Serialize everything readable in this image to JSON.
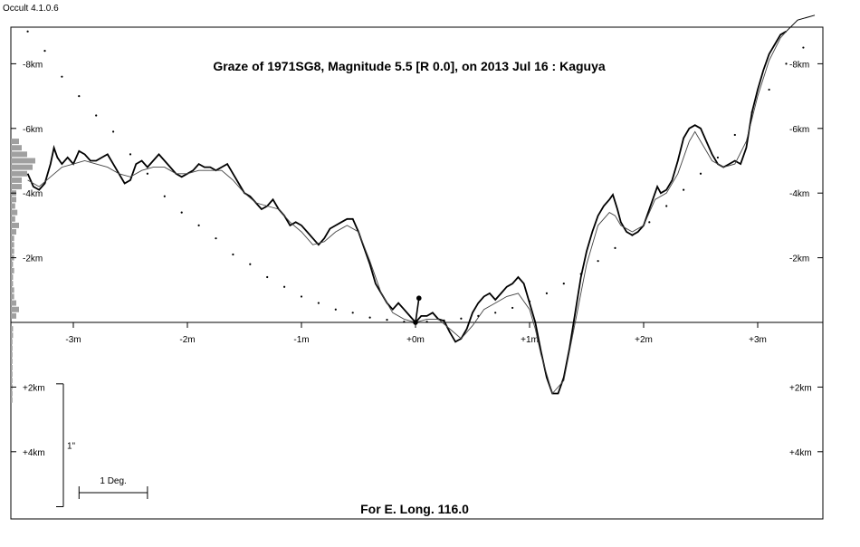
{
  "app": {
    "version": "Occult 4.1.0.6"
  },
  "chart_data": {
    "type": "line",
    "title": "Graze of  1971SG8,  Magnitude 5.5 [R 0.0],  on 2013 Jul 16  :  Kaguya",
    "footer": "For E. Long. 116.0",
    "x_axis": {
      "unit": "m",
      "range": [
        -3.4,
        3.55
      ],
      "ticks": [
        -3,
        -2,
        -1,
        0,
        1,
        2,
        3
      ],
      "tick_labels": [
        "-3m",
        "-2m",
        "-1m",
        "+0m",
        "+1m",
        "+2m",
        "+3m"
      ]
    },
    "y_axis": {
      "unit": "km",
      "range": [
        -9,
        6
      ],
      "ticks": [
        -8,
        -6,
        -4,
        -2,
        2,
        4
      ],
      "tick_labels": [
        "-8km",
        "-6km",
        "-4km",
        "-2km",
        "+2km",
        "+4km"
      ],
      "note": "negative values plotted upward"
    },
    "scale_bars": {
      "vertical_label": "1\"",
      "vertical_km": [
        1.9,
        5.7
      ],
      "horizontal_label": "1 Deg.",
      "horizontal_m": [
        -2.95,
        -2.35
      ]
    },
    "star_marker": {
      "x": 0.0,
      "y": 0.0,
      "x2": 0.03,
      "y2": -0.75
    },
    "series": [
      {
        "role": "profile-detailed",
        "points": [
          [
            -3.4,
            -4.6
          ],
          [
            -3.35,
            -4.2
          ],
          [
            -3.3,
            -4.1
          ],
          [
            -3.25,
            -4.3
          ],
          [
            -3.2,
            -4.9
          ],
          [
            -3.17,
            -5.4
          ],
          [
            -3.14,
            -5.1
          ],
          [
            -3.1,
            -4.9
          ],
          [
            -3.05,
            -5.1
          ],
          [
            -3.0,
            -4.9
          ],
          [
            -2.95,
            -5.3
          ],
          [
            -2.9,
            -5.2
          ],
          [
            -2.85,
            -5.0
          ],
          [
            -2.8,
            -5.0
          ],
          [
            -2.75,
            -5.1
          ],
          [
            -2.7,
            -5.2
          ],
          [
            -2.65,
            -4.9
          ],
          [
            -2.6,
            -4.6
          ],
          [
            -2.55,
            -4.3
          ],
          [
            -2.5,
            -4.4
          ],
          [
            -2.45,
            -4.9
          ],
          [
            -2.4,
            -5.0
          ],
          [
            -2.35,
            -4.8
          ],
          [
            -2.3,
            -5.0
          ],
          [
            -2.25,
            -5.2
          ],
          [
            -2.2,
            -5.0
          ],
          [
            -2.15,
            -4.8
          ],
          [
            -2.1,
            -4.6
          ],
          [
            -2.05,
            -4.5
          ],
          [
            -2.0,
            -4.6
          ],
          [
            -1.95,
            -4.7
          ],
          [
            -1.9,
            -4.9
          ],
          [
            -1.85,
            -4.8
          ],
          [
            -1.8,
            -4.8
          ],
          [
            -1.75,
            -4.7
          ],
          [
            -1.7,
            -4.8
          ],
          [
            -1.65,
            -4.9
          ],
          [
            -1.6,
            -4.6
          ],
          [
            -1.55,
            -4.3
          ],
          [
            -1.5,
            -4.0
          ],
          [
            -1.45,
            -3.9
          ],
          [
            -1.4,
            -3.7
          ],
          [
            -1.35,
            -3.5
          ],
          [
            -1.3,
            -3.6
          ],
          [
            -1.25,
            -3.8
          ],
          [
            -1.2,
            -3.5
          ],
          [
            -1.15,
            -3.3
          ],
          [
            -1.1,
            -3.0
          ],
          [
            -1.05,
            -3.1
          ],
          [
            -1.0,
            -3.0
          ],
          [
            -0.95,
            -2.8
          ],
          [
            -0.9,
            -2.6
          ],
          [
            -0.85,
            -2.4
          ],
          [
            -0.8,
            -2.6
          ],
          [
            -0.75,
            -2.9
          ],
          [
            -0.7,
            -3.0
          ],
          [
            -0.65,
            -3.1
          ],
          [
            -0.6,
            -3.2
          ],
          [
            -0.55,
            -3.2
          ],
          [
            -0.5,
            -2.8
          ],
          [
            -0.45,
            -2.3
          ],
          [
            -0.4,
            -1.8
          ],
          [
            -0.35,
            -1.2
          ],
          [
            -0.3,
            -0.9
          ],
          [
            -0.25,
            -0.6
          ],
          [
            -0.2,
            -0.4
          ],
          [
            -0.15,
            -0.6
          ],
          [
            -0.1,
            -0.4
          ],
          [
            -0.05,
            -0.2
          ],
          [
            0.0,
            0.0
          ],
          [
            0.05,
            -0.2
          ],
          [
            0.1,
            -0.2
          ],
          [
            0.15,
            -0.3
          ],
          [
            0.2,
            -0.1
          ],
          [
            0.25,
            -0.05
          ],
          [
            0.3,
            0.3
          ],
          [
            0.35,
            0.6
          ],
          [
            0.4,
            0.5
          ],
          [
            0.45,
            0.2
          ],
          [
            0.5,
            -0.3
          ],
          [
            0.55,
            -0.6
          ],
          [
            0.6,
            -0.8
          ],
          [
            0.65,
            -0.9
          ],
          [
            0.7,
            -0.7
          ],
          [
            0.75,
            -0.9
          ],
          [
            0.8,
            -1.1
          ],
          [
            0.85,
            -1.2
          ],
          [
            0.9,
            -1.4
          ],
          [
            0.95,
            -1.2
          ],
          [
            1.0,
            -0.6
          ],
          [
            1.05,
            0.0
          ],
          [
            1.1,
            0.9
          ],
          [
            1.15,
            1.7
          ],
          [
            1.2,
            2.2
          ],
          [
            1.25,
            2.2
          ],
          [
            1.3,
            1.7
          ],
          [
            1.35,
            0.8
          ],
          [
            1.4,
            -0.3
          ],
          [
            1.45,
            -1.4
          ],
          [
            1.5,
            -2.2
          ],
          [
            1.55,
            -2.8
          ],
          [
            1.6,
            -3.3
          ],
          [
            1.65,
            -3.6
          ],
          [
            1.7,
            -3.8
          ],
          [
            1.73,
            -3.95
          ],
          [
            1.77,
            -3.5
          ],
          [
            1.8,
            -3.1
          ],
          [
            1.85,
            -2.8
          ],
          [
            1.9,
            -2.7
          ],
          [
            1.95,
            -2.8
          ],
          [
            2.0,
            -3.0
          ],
          [
            2.05,
            -3.5
          ],
          [
            2.1,
            -4.0
          ],
          [
            2.12,
            -4.2
          ],
          [
            2.15,
            -4.0
          ],
          [
            2.2,
            -4.1
          ],
          [
            2.25,
            -4.4
          ],
          [
            2.3,
            -5.0
          ],
          [
            2.35,
            -5.7
          ],
          [
            2.4,
            -6.0
          ],
          [
            2.45,
            -6.1
          ],
          [
            2.5,
            -6.0
          ],
          [
            2.55,
            -5.6
          ],
          [
            2.6,
            -5.2
          ],
          [
            2.65,
            -4.9
          ],
          [
            2.7,
            -4.8
          ],
          [
            2.75,
            -4.9
          ],
          [
            2.8,
            -5.0
          ],
          [
            2.85,
            -4.9
          ],
          [
            2.9,
            -5.4
          ],
          [
            2.95,
            -6.5
          ],
          [
            3.0,
            -7.2
          ],
          [
            3.05,
            -7.8
          ],
          [
            3.1,
            -8.3
          ],
          [
            3.15,
            -8.6
          ],
          [
            3.2,
            -8.9
          ],
          [
            3.25,
            -9.0
          ]
        ]
      },
      {
        "role": "profile-smoothed",
        "points": [
          [
            -3.4,
            -4.4
          ],
          [
            -3.3,
            -4.2
          ],
          [
            -3.2,
            -4.5
          ],
          [
            -3.1,
            -4.8
          ],
          [
            -3.0,
            -4.9
          ],
          [
            -2.9,
            -5.0
          ],
          [
            -2.8,
            -4.9
          ],
          [
            -2.7,
            -4.8
          ],
          [
            -2.6,
            -4.6
          ],
          [
            -2.5,
            -4.5
          ],
          [
            -2.4,
            -4.7
          ],
          [
            -2.3,
            -4.8
          ],
          [
            -2.2,
            -4.8
          ],
          [
            -2.1,
            -4.6
          ],
          [
            -2.0,
            -4.6
          ],
          [
            -1.9,
            -4.7
          ],
          [
            -1.8,
            -4.7
          ],
          [
            -1.7,
            -4.7
          ],
          [
            -1.6,
            -4.4
          ],
          [
            -1.5,
            -4.0
          ],
          [
            -1.4,
            -3.7
          ],
          [
            -1.3,
            -3.6
          ],
          [
            -1.2,
            -3.5
          ],
          [
            -1.1,
            -3.1
          ],
          [
            -1.0,
            -2.8
          ],
          [
            -0.9,
            -2.4
          ],
          [
            -0.8,
            -2.5
          ],
          [
            -0.7,
            -2.8
          ],
          [
            -0.6,
            -3.0
          ],
          [
            -0.5,
            -2.8
          ],
          [
            -0.4,
            -1.9
          ],
          [
            -0.3,
            -0.9
          ],
          [
            -0.2,
            -0.3
          ],
          [
            -0.1,
            -0.1
          ],
          [
            0.0,
            0.0
          ],
          [
            0.1,
            -0.1
          ],
          [
            0.2,
            -0.1
          ],
          [
            0.3,
            0.2
          ],
          [
            0.4,
            0.5
          ],
          [
            0.5,
            0.1
          ],
          [
            0.6,
            -0.4
          ],
          [
            0.7,
            -0.6
          ],
          [
            0.8,
            -0.8
          ],
          [
            0.9,
            -0.9
          ],
          [
            1.0,
            -0.4
          ],
          [
            1.05,
            0.2
          ],
          [
            1.1,
            1.0
          ],
          [
            1.2,
            2.2
          ],
          [
            1.3,
            1.8
          ],
          [
            1.4,
            0.0
          ],
          [
            1.5,
            -1.8
          ],
          [
            1.6,
            -3.0
          ],
          [
            1.7,
            -3.4
          ],
          [
            1.75,
            -3.3
          ],
          [
            1.8,
            -3.0
          ],
          [
            1.9,
            -2.8
          ],
          [
            2.0,
            -3.0
          ],
          [
            2.1,
            -3.8
          ],
          [
            2.2,
            -4.0
          ],
          [
            2.3,
            -4.6
          ],
          [
            2.4,
            -5.6
          ],
          [
            2.45,
            -5.9
          ],
          [
            2.5,
            -5.6
          ],
          [
            2.6,
            -5.0
          ],
          [
            2.7,
            -4.8
          ],
          [
            2.8,
            -4.9
          ],
          [
            2.9,
            -5.6
          ],
          [
            3.0,
            -7.0
          ],
          [
            3.1,
            -8.1
          ],
          [
            3.2,
            -8.8
          ],
          [
            3.25,
            -9.0
          ]
        ]
      },
      {
        "role": "lunar-limb-dotted",
        "points": [
          [
            -3.4,
            -9.0
          ],
          [
            -3.25,
            -8.4
          ],
          [
            -3.1,
            -7.6
          ],
          [
            -2.95,
            -7.0
          ],
          [
            -2.8,
            -6.4
          ],
          [
            -2.65,
            -5.9
          ],
          [
            -2.5,
            -5.2
          ],
          [
            -2.35,
            -4.6
          ],
          [
            -2.2,
            -3.9
          ],
          [
            -2.05,
            -3.4
          ],
          [
            -1.9,
            -3.0
          ],
          [
            -1.75,
            -2.6
          ],
          [
            -1.6,
            -2.1
          ],
          [
            -1.45,
            -1.8
          ],
          [
            -1.3,
            -1.4
          ],
          [
            -1.15,
            -1.1
          ],
          [
            -1.0,
            -0.8
          ],
          [
            -0.85,
            -0.6
          ],
          [
            -0.7,
            -0.4
          ],
          [
            -0.55,
            -0.3
          ],
          [
            -0.4,
            -0.15
          ],
          [
            -0.25,
            -0.08
          ],
          [
            -0.1,
            -0.02
          ],
          [
            0.1,
            -0.02
          ],
          [
            0.25,
            -0.06
          ],
          [
            0.4,
            -0.12
          ],
          [
            0.55,
            -0.2
          ],
          [
            0.7,
            -0.3
          ],
          [
            0.85,
            -0.45
          ],
          [
            1.0,
            -0.65
          ],
          [
            1.15,
            -0.9
          ],
          [
            1.3,
            -1.2
          ],
          [
            1.45,
            -1.5
          ],
          [
            1.6,
            -1.9
          ],
          [
            1.75,
            -2.3
          ],
          [
            1.9,
            -2.7
          ],
          [
            2.05,
            -3.1
          ],
          [
            2.2,
            -3.6
          ],
          [
            2.35,
            -4.1
          ],
          [
            2.5,
            -4.6
          ],
          [
            2.65,
            -5.1
          ],
          [
            2.8,
            -5.8
          ],
          [
            2.95,
            -6.5
          ],
          [
            3.1,
            -7.2
          ],
          [
            3.25,
            -8.0
          ],
          [
            3.4,
            -8.5
          ]
        ]
      },
      {
        "role": "profile-extension",
        "points": [
          [
            3.25,
            -9.0
          ],
          [
            3.35,
            -9.35
          ],
          [
            3.5,
            -9.5
          ]
        ]
      }
    ],
    "histogram": {
      "bins": [
        [
          -5.0,
          4.5
        ],
        [
          -4.8,
          4.0
        ],
        [
          -4.6,
          3.0
        ],
        [
          -5.2,
          3.0
        ],
        [
          -4.4,
          2.0
        ],
        [
          -5.4,
          2.0
        ],
        [
          -4.2,
          2.0
        ],
        [
          -5.6,
          1.5
        ],
        [
          -4.0,
          1.0
        ],
        [
          -3.8,
          1.0
        ],
        [
          -3.6,
          0.8
        ],
        [
          -3.4,
          1.2
        ],
        [
          -3.2,
          0.8
        ],
        [
          -3.0,
          1.5
        ],
        [
          -2.8,
          1.0
        ],
        [
          -2.6,
          0.6
        ],
        [
          -2.4,
          0.6
        ],
        [
          -2.2,
          0.6
        ],
        [
          -2.0,
          0.6
        ],
        [
          -1.8,
          0.4
        ],
        [
          -1.6,
          0.6
        ],
        [
          -1.4,
          0.4
        ],
        [
          -1.2,
          0.4
        ],
        [
          -1.0,
          0.6
        ],
        [
          -0.8,
          0.6
        ],
        [
          -0.6,
          1.0
        ],
        [
          -0.4,
          1.5
        ],
        [
          -0.2,
          1.0
        ],
        [
          0.2,
          0.4
        ],
        [
          0.4,
          0.4
        ],
        [
          0.6,
          0.3
        ],
        [
          0.8,
          0.3
        ],
        [
          1.0,
          0.3
        ],
        [
          1.2,
          0.3
        ],
        [
          1.4,
          0.3
        ],
        [
          1.6,
          0.3
        ],
        [
          1.8,
          0.3
        ],
        [
          2.0,
          0.3
        ],
        [
          2.2,
          0.3
        ],
        [
          2.4,
          0.3
        ]
      ]
    }
  }
}
